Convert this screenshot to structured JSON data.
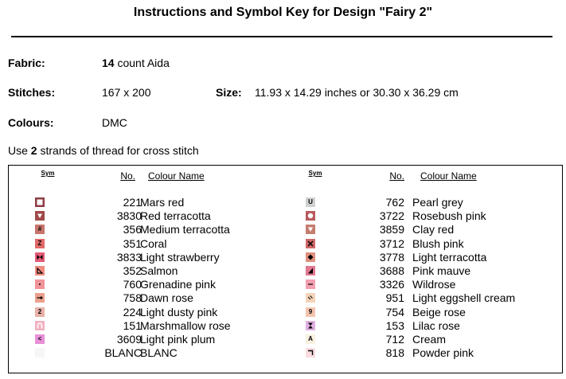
{
  "title": "Instructions and Symbol Key for Design \"Fairy 2\"",
  "info": {
    "fabric_label": "Fabric:",
    "fabric_count": "14",
    "fabric_rest": " count Aida",
    "stitches_label": "Stitches:",
    "stitches_value": "167 x 200",
    "size_label": "Size:",
    "size_value": "11.93 x 14.29 inches or 30.30 x 36.29 cm",
    "colours_label": "Colours:",
    "colours_value": "DMC",
    "strands_pre": "Use ",
    "strands_count": "2",
    "strands_post": " strands of thread for cross stitch"
  },
  "key": {
    "headers": {
      "sym": "Sym",
      "no": "No.",
      "name": "Colour Name"
    },
    "left": [
      {
        "no": "221",
        "name": "Mars red",
        "color": "#8f3c44",
        "glyph": "square-outline"
      },
      {
        "no": "3830",
        "name": "Red terracotta",
        "color": "#a04a4a",
        "glyph": "triangle-down"
      },
      {
        "no": "356",
        "name": "Medium terracotta",
        "color": "#c8746c",
        "glyph": "#"
      },
      {
        "no": "351",
        "name": "Coral",
        "color": "#e26a6a",
        "glyph": "Z"
      },
      {
        "no": "3833",
        "name": "Light strawberry",
        "color": "#e45a78",
        "glyph": "bowtie"
      },
      {
        "no": "352",
        "name": "Salmon",
        "color": "#f08c80",
        "glyph": "triangle-corner"
      },
      {
        "no": "760",
        "name": "Grenadine pink",
        "color": "#f0949a",
        "glyph": "dot"
      },
      {
        "no": "758",
        "name": "Dawn rose",
        "color": "#eaa08e",
        "glyph": "arrow"
      },
      {
        "no": "224",
        "name": "Light dusty pink",
        "color": "#e8b0a8",
        "glyph": "2"
      },
      {
        "no": "151",
        "name": "Marshmallow rose",
        "color": "#f2b0c0",
        "glyph": "arch"
      },
      {
        "no": "3609",
        "name": "Light pink plum",
        "color": "#e890d8",
        "glyph": "<"
      },
      {
        "no": "BLANC",
        "name": "BLANC",
        "color": "#f6f6f6",
        "glyph": ""
      }
    ],
    "right": [
      {
        "no": "762",
        "name": "Pearl grey",
        "color": "#cfd0d0",
        "glyph": "U"
      },
      {
        "no": "3722",
        "name": "Rosebush pink",
        "color": "#b85a5e",
        "glyph": "circle"
      },
      {
        "no": "3859",
        "name": "Clay red",
        "color": "#c47e70",
        "glyph": "triangle-down"
      },
      {
        "no": "3712",
        "name": "Blush pink",
        "color": "#d06868",
        "glyph": "x"
      },
      {
        "no": "3778",
        "name": "Light terracotta",
        "color": "#e09080",
        "glyph": "diamond"
      },
      {
        "no": "3688",
        "name": "Pink mauve",
        "color": "#e07890",
        "glyph": "wedge"
      },
      {
        "no": "3326",
        "name": "Wildrose",
        "color": "#f2a0b0",
        "glyph": "dash"
      },
      {
        "no": "951",
        "name": "Light eggshell cream",
        "color": "#f4d4b8",
        "glyph": "slashes"
      },
      {
        "no": "754",
        "name": "Beige rose",
        "color": "#f4c4b0",
        "glyph": "9"
      },
      {
        "no": "153",
        "name": "Lilac rose",
        "color": "#e0b0e0",
        "glyph": "hourglass"
      },
      {
        "no": "712",
        "name": "Cream",
        "color": "#f8f0e0",
        "glyph": "A"
      },
      {
        "no": "818",
        "name": "Powder pink",
        "color": "#f8dce0",
        "glyph": "corner"
      }
    ]
  }
}
